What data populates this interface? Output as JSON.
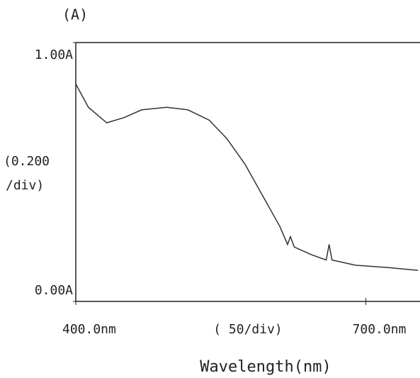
{
  "chart_data": {
    "type": "line",
    "title": "(A)",
    "x_label": "Wavelength(nm)",
    "y_annotation": [
      "(0.200",
      "/div)"
    ],
    "x_annotation": "( 50/div)",
    "x": [
      400,
      413,
      432,
      450,
      468,
      494,
      516,
      538,
      556,
      575,
      593,
      611,
      619,
      622,
      626,
      644,
      659,
      662,
      665,
      689,
      725,
      754
    ],
    "series": [
      {
        "color": "#333333",
        "values": [
          0.84,
          0.75,
          0.69,
          0.71,
          0.74,
          0.75,
          0.74,
          0.7,
          0.63,
          0.53,
          0.41,
          0.29,
          0.22,
          0.25,
          0.21,
          0.18,
          0.16,
          0.22,
          0.16,
          0.14,
          0.13,
          0.12
        ]
      }
    ],
    "xlim": [
      400,
      756
    ],
    "ylim": [
      0,
      1
    ],
    "xticks": [
      {
        "value": 400,
        "label": "400.0nm"
      },
      {
        "value": 700,
        "label": "700.0nm"
      }
    ],
    "yticks": [
      {
        "value": 0,
        "label": "0.00A"
      },
      {
        "value": 1,
        "label": "1.00A"
      }
    ]
  }
}
